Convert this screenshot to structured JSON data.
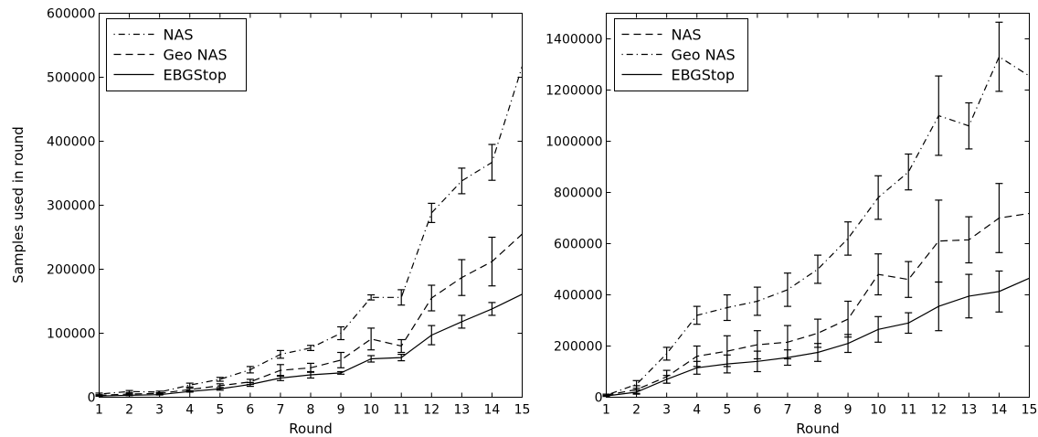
{
  "chart_data": [
    {
      "type": "line",
      "xlabel": "Round",
      "ylabel": "Samples used in round",
      "xlim": [
        1,
        15
      ],
      "ylim": [
        0,
        600000
      ],
      "xticks": [
        1,
        2,
        3,
        4,
        5,
        6,
        7,
        8,
        9,
        10,
        11,
        12,
        13,
        14,
        15
      ],
      "yticks": [
        0,
        100000,
        200000,
        300000,
        400000,
        500000,
        600000
      ],
      "legend": "top-left",
      "grid": false,
      "x": [
        1,
        2,
        3,
        4,
        5,
        6,
        7,
        8,
        9,
        10,
        11,
        12,
        13,
        14,
        15
      ],
      "series": [
        {
          "name": "NAS",
          "style": "dashdot-sparse",
          "values": [
            5000,
            9000,
            8000,
            19000,
            28000,
            43000,
            67000,
            77000,
            100000,
            156000,
            156000,
            288000,
            338000,
            367000,
            517000
          ],
          "err": [
            1500,
            1500,
            1500,
            3000,
            3000,
            5000,
            6000,
            4000,
            10000,
            4000,
            12000,
            15000,
            20000,
            28000,
            0
          ]
        },
        {
          "name": "Geo NAS",
          "style": "dashed",
          "values": [
            3000,
            5000,
            6000,
            12000,
            18000,
            24000,
            42000,
            46000,
            58000,
            91000,
            80000,
            155000,
            187000,
            212000,
            255000
          ],
          "err": [
            1000,
            1000,
            1000,
            2000,
            3000,
            4000,
            9000,
            7000,
            12000,
            17000,
            10000,
            20000,
            28000,
            38000,
            0
          ]
        },
        {
          "name": "EBGStop",
          "style": "solid",
          "values": [
            2000,
            3000,
            4000,
            9000,
            13000,
            20000,
            30000,
            35000,
            38000,
            60000,
            62000,
            97000,
            118000,
            138000,
            161000
          ],
          "err": [
            500,
            500,
            500,
            1000,
            2000,
            3000,
            4000,
            5000,
            2000,
            5000,
            5000,
            15000,
            10000,
            10000,
            0
          ]
        }
      ]
    },
    {
      "type": "line",
      "xlabel": "Round",
      "ylabel": "",
      "xlim": [
        1,
        15
      ],
      "ylim": [
        0,
        1500000
      ],
      "xticks": [
        1,
        2,
        3,
        4,
        5,
        6,
        7,
        8,
        9,
        10,
        11,
        12,
        13,
        14,
        15
      ],
      "yticks": [
        0,
        200000,
        400000,
        600000,
        800000,
        1000000,
        1200000,
        1400000
      ],
      "legend": "top-left",
      "grid": false,
      "x": [
        1,
        2,
        3,
        4,
        5,
        6,
        7,
        8,
        9,
        10,
        11,
        12,
        13,
        14,
        15
      ],
      "series": [
        {
          "name": "NAS",
          "style": "dashed",
          "values": [
            8000,
            30000,
            80000,
            160000,
            180000,
            205000,
            215000,
            250000,
            305000,
            480000,
            460000,
            610000,
            615000,
            700000,
            718000
          ],
          "err": [
            4000,
            15000,
            25000,
            40000,
            60000,
            55000,
            65000,
            55000,
            70000,
            80000,
            70000,
            160000,
            90000,
            135000,
            0
          ]
        },
        {
          "name": "Geo NAS",
          "style": "dashdot-sparse",
          "values": [
            8000,
            50000,
            170000,
            320000,
            350000,
            375000,
            420000,
            500000,
            620000,
            780000,
            880000,
            1100000,
            1060000,
            1330000,
            1255000
          ],
          "err": [
            4000,
            15000,
            25000,
            35000,
            50000,
            55000,
            65000,
            55000,
            65000,
            85000,
            70000,
            155000,
            90000,
            135000,
            0
          ]
        },
        {
          "name": "EBGStop",
          "style": "solid",
          "values": [
            5000,
            20000,
            70000,
            115000,
            130000,
            140000,
            155000,
            175000,
            210000,
            265000,
            290000,
            355000,
            395000,
            413000,
            465000
          ],
          "err": [
            2000,
            8000,
            15000,
            25000,
            35000,
            40000,
            30000,
            35000,
            35000,
            50000,
            40000,
            95000,
            85000,
            80000,
            0
          ]
        }
      ]
    }
  ]
}
